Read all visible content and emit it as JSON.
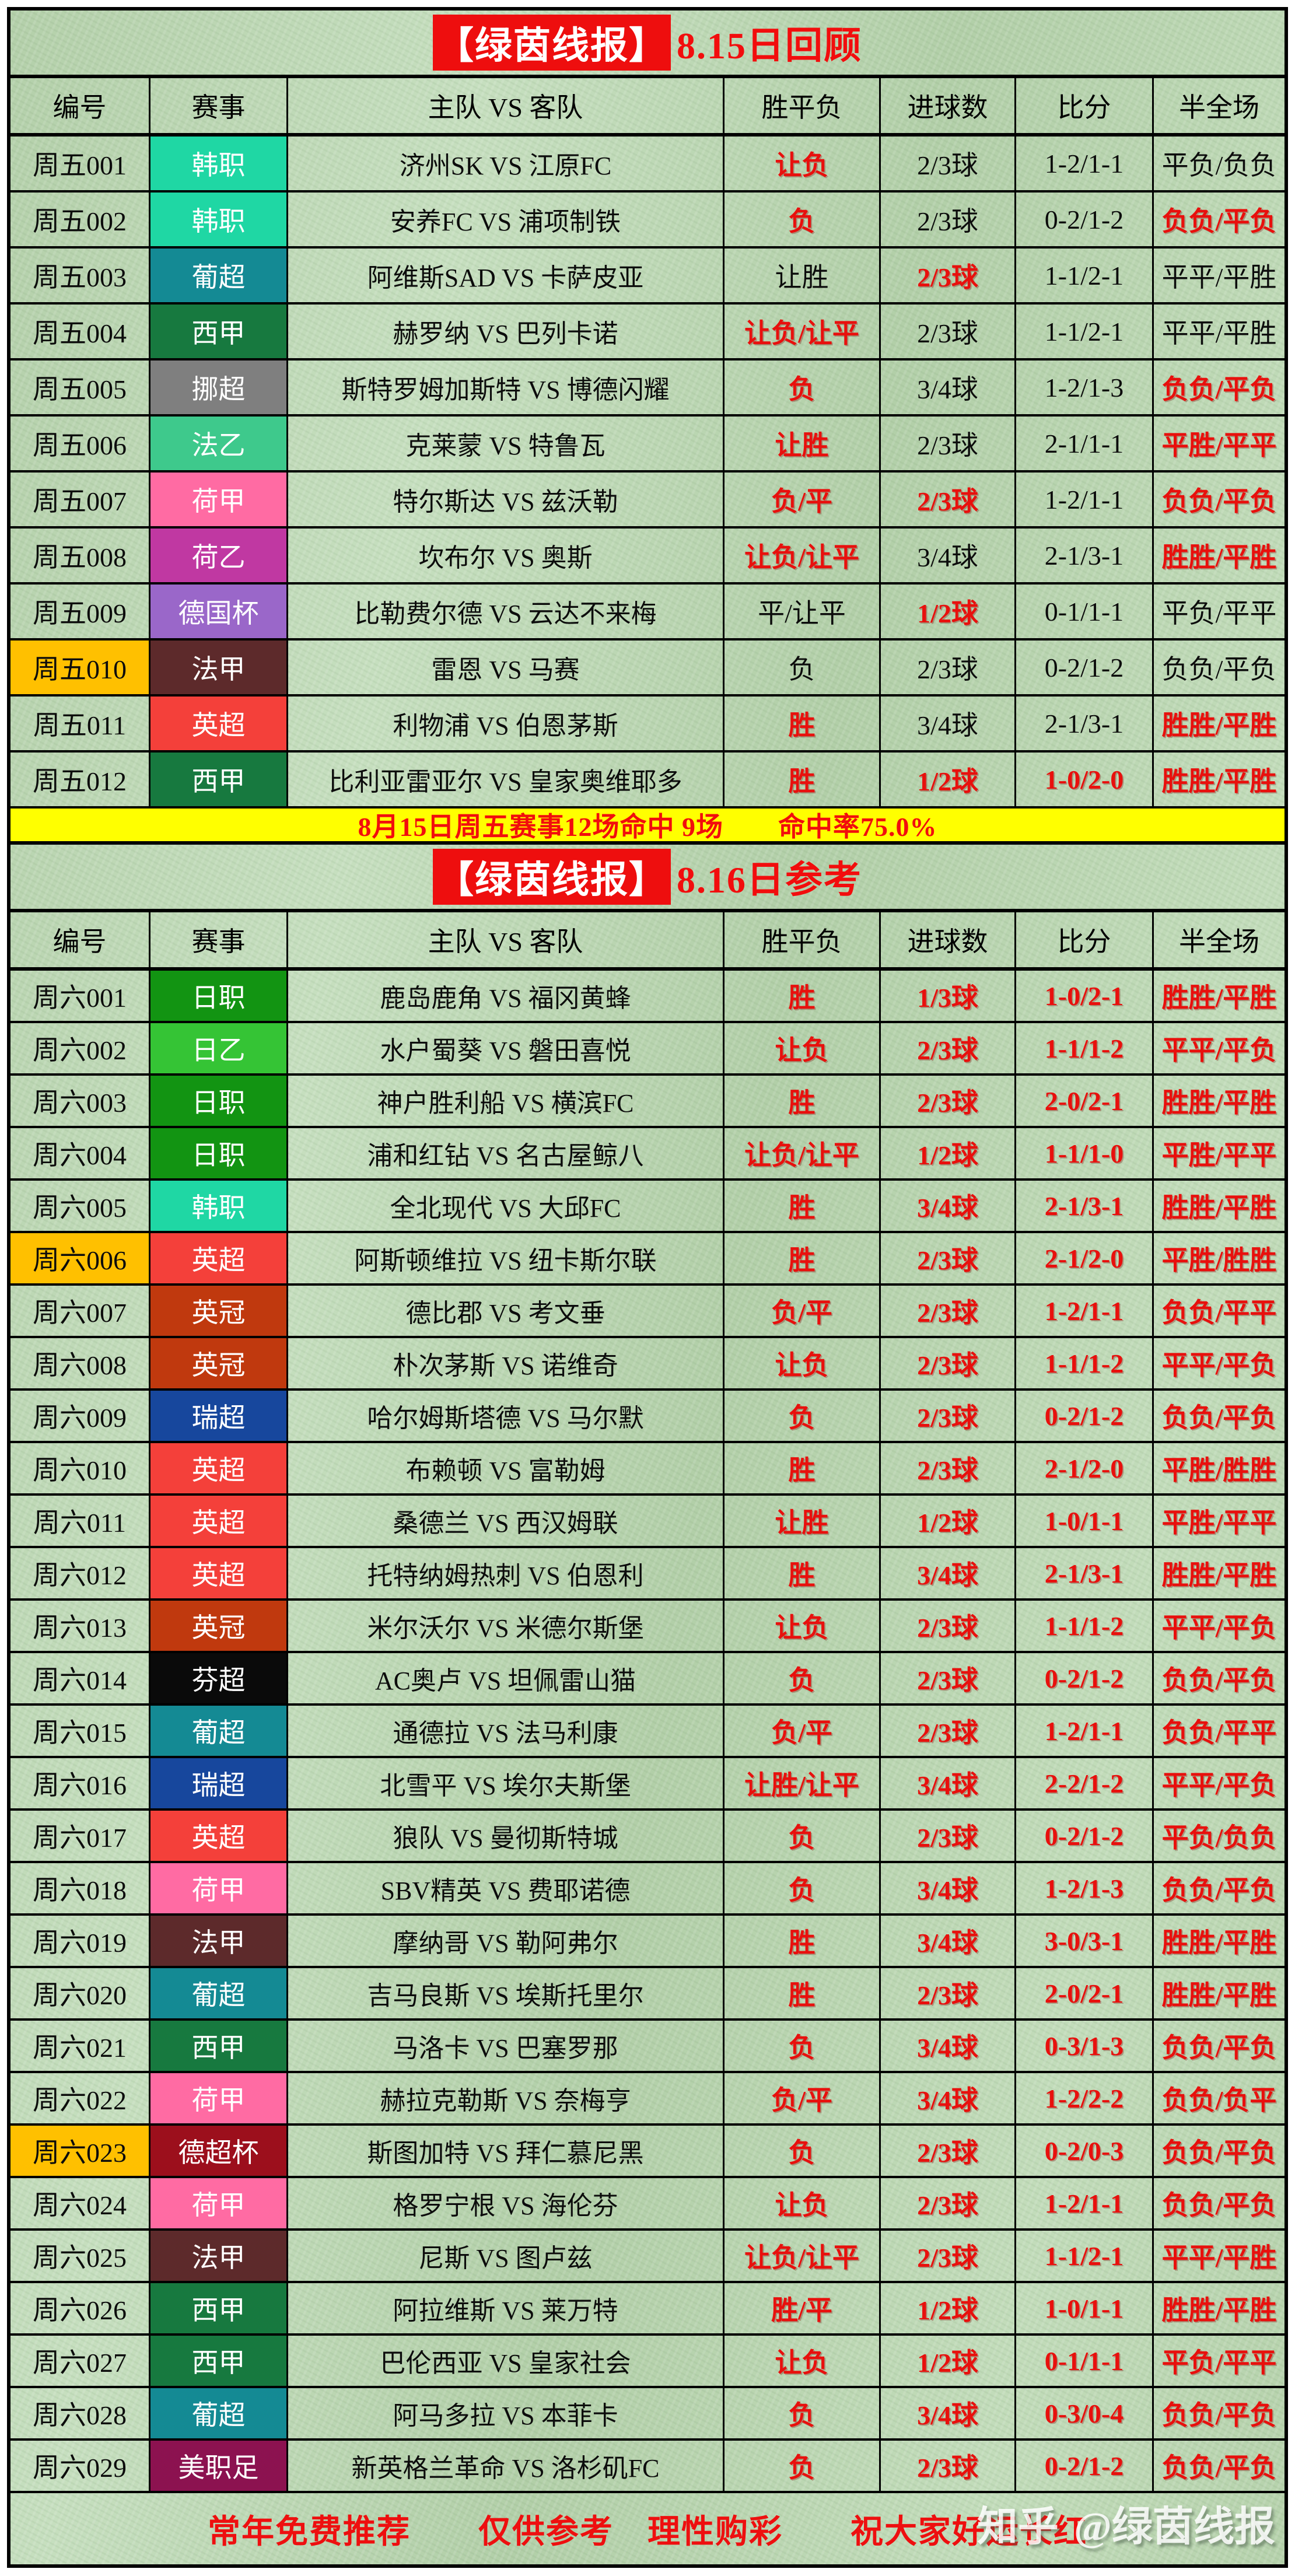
{
  "titles": {
    "brand": "【绿茵线报】",
    "review": "8.15日回顾",
    "reference": "8.16日参考"
  },
  "columns": [
    "编号",
    "赛事",
    "主队 VS 客队",
    "胜平负",
    "进球数",
    "比分",
    "半全场"
  ],
  "colors": {
    "red_text": "#e8100d",
    "black_text": "#0c0c0c",
    "banner_bg": "#ffff00",
    "id_highlight_bg": "#ffc000",
    "brand_badge_bg": "#ee0e0e",
    "board_bg": "#bad5b1",
    "leagues": {
      "韩职": "#1fd7a4",
      "葡超": "#148a94",
      "西甲": "#17793f",
      "挪超": "#7f7f7f",
      "法乙": "#3ec98c",
      "荷甲": "#ff6ba3",
      "荷乙": "#c038a2",
      "德国杯": "#9a67c9",
      "法甲": "#5d2a2b",
      "英超": "#f4403a",
      "日职": "#129412",
      "日乙": "#35c435",
      "英冠": "#c0390e",
      "瑞超": "#17479d",
      "芬超": "#0a0a0a",
      "德超杯": "#9c0f1c",
      "美职足": "#8c1250"
    }
  },
  "sections": [
    {
      "title_suffix": "8.15日回顾",
      "banner": "8月15日周五赛事12场命中 9场　　命中率75.0%",
      "rows": [
        {
          "id": "周五001",
          "hl": false,
          "league": "韩职",
          "match": "济州SK VS 江原FC",
          "vals": [
            "让负",
            "2/3球",
            "1-2/1-1",
            "平负/负负"
          ],
          "red": [
            1,
            0,
            0,
            0
          ]
        },
        {
          "id": "周五002",
          "hl": false,
          "league": "韩职",
          "match": "安养FC VS 浦项制铁",
          "vals": [
            "负",
            "2/3球",
            "0-2/1-2",
            "负负/平负"
          ],
          "red": [
            1,
            0,
            0,
            1
          ]
        },
        {
          "id": "周五003",
          "hl": false,
          "league": "葡超",
          "match": "阿维斯SAD VS 卡萨皮亚",
          "vals": [
            "让胜",
            "2/3球",
            "1-1/2-1",
            "平平/平胜"
          ],
          "red": [
            0,
            1,
            0,
            0
          ]
        },
        {
          "id": "周五004",
          "hl": false,
          "league": "西甲",
          "match": "赫罗纳 VS 巴列卡诺",
          "vals": [
            "让负/让平",
            "2/3球",
            "1-1/2-1",
            "平平/平胜"
          ],
          "red": [
            1,
            0,
            0,
            0
          ]
        },
        {
          "id": "周五005",
          "hl": false,
          "league": "挪超",
          "match": "斯特罗姆加斯特 VS 博德闪耀",
          "vals": [
            "负",
            "3/4球",
            "1-2/1-3",
            "负负/平负"
          ],
          "red": [
            1,
            0,
            0,
            1
          ]
        },
        {
          "id": "周五006",
          "hl": false,
          "league": "法乙",
          "match": "克莱蒙 VS 特鲁瓦",
          "vals": [
            "让胜",
            "2/3球",
            "2-1/1-1",
            "平胜/平平"
          ],
          "red": [
            1,
            0,
            0,
            1
          ]
        },
        {
          "id": "周五007",
          "hl": false,
          "league": "荷甲",
          "match": "特尔斯达 VS 兹沃勒",
          "vals": [
            "负/平",
            "2/3球",
            "1-2/1-1",
            "负负/平负"
          ],
          "red": [
            1,
            1,
            0,
            1
          ]
        },
        {
          "id": "周五008",
          "hl": false,
          "league": "荷乙",
          "match": "坎布尔 VS 奥斯",
          "vals": [
            "让负/让平",
            "3/4球",
            "2-1/3-1",
            "胜胜/平胜"
          ],
          "red": [
            1,
            0,
            0,
            1
          ]
        },
        {
          "id": "周五009",
          "hl": false,
          "league": "德国杯",
          "match": "比勒费尔德 VS 云达不来梅",
          "vals": [
            "平/让平",
            "1/2球",
            "0-1/1-1",
            "平负/平平"
          ],
          "red": [
            0,
            1,
            0,
            0
          ]
        },
        {
          "id": "周五010",
          "hl": true,
          "league": "法甲",
          "match": "雷恩 VS 马赛",
          "vals": [
            "负",
            "2/3球",
            "0-2/1-2",
            "负负/平负"
          ],
          "red": [
            0,
            0,
            0,
            0
          ]
        },
        {
          "id": "周五011",
          "hl": false,
          "league": "英超",
          "match": "利物浦 VS 伯恩茅斯",
          "vals": [
            "胜",
            "3/4球",
            "2-1/3-1",
            "胜胜/平胜"
          ],
          "red": [
            1,
            0,
            0,
            1
          ]
        },
        {
          "id": "周五012",
          "hl": false,
          "league": "西甲",
          "match": "比利亚雷亚尔 VS 皇家奥维耶多",
          "vals": [
            "胜",
            "1/2球",
            "1-0/2-0",
            "胜胜/平胜"
          ],
          "red": [
            1,
            1,
            1,
            1
          ]
        }
      ]
    },
    {
      "title_suffix": "8.16日参考",
      "banner": null,
      "rows": [
        {
          "id": "周六001",
          "hl": false,
          "league": "日职",
          "match": "鹿岛鹿角 VS 福冈黄蜂",
          "vals": [
            "胜",
            "1/3球",
            "1-0/2-1",
            "胜胜/平胜"
          ],
          "red": [
            1,
            1,
            1,
            1
          ]
        },
        {
          "id": "周六002",
          "hl": false,
          "league": "日乙",
          "match": "水户蜀葵 VS 磐田喜悦",
          "vals": [
            "让负",
            "2/3球",
            "1-1/1-2",
            "平平/平负"
          ],
          "red": [
            1,
            1,
            1,
            1
          ]
        },
        {
          "id": "周六003",
          "hl": false,
          "league": "日职",
          "match": "神户胜利船 VS 横滨FC",
          "vals": [
            "胜",
            "2/3球",
            "2-0/2-1",
            "胜胜/平胜"
          ],
          "red": [
            1,
            1,
            1,
            1
          ]
        },
        {
          "id": "周六004",
          "hl": false,
          "league": "日职",
          "match": "浦和红钻 VS 名古屋鲸八",
          "vals": [
            "让负/让平",
            "1/2球",
            "1-1/1-0",
            "平胜/平平"
          ],
          "red": [
            1,
            1,
            1,
            1
          ]
        },
        {
          "id": "周六005",
          "hl": false,
          "league": "韩职",
          "match": "全北现代 VS 大邱FC",
          "vals": [
            "胜",
            "3/4球",
            "2-1/3-1",
            "胜胜/平胜"
          ],
          "red": [
            1,
            1,
            1,
            1
          ]
        },
        {
          "id": "周六006",
          "hl": true,
          "league": "英超",
          "match": "阿斯顿维拉 VS 纽卡斯尔联",
          "vals": [
            "胜",
            "2/3球",
            "2-1/2-0",
            "平胜/胜胜"
          ],
          "red": [
            1,
            1,
            1,
            1
          ]
        },
        {
          "id": "周六007",
          "hl": false,
          "league": "英冠",
          "match": "德比郡 VS 考文垂",
          "vals": [
            "负/平",
            "2/3球",
            "1-2/1-1",
            "负负/平平"
          ],
          "red": [
            1,
            1,
            1,
            1
          ]
        },
        {
          "id": "周六008",
          "hl": false,
          "league": "英冠",
          "match": "朴次茅斯 VS 诺维奇",
          "vals": [
            "让负",
            "2/3球",
            "1-1/1-2",
            "平平/平负"
          ],
          "red": [
            1,
            1,
            1,
            1
          ]
        },
        {
          "id": "周六009",
          "hl": false,
          "league": "瑞超",
          "match": "哈尔姆斯塔德 VS 马尔默",
          "vals": [
            "负",
            "2/3球",
            "0-2/1-2",
            "负负/平负"
          ],
          "red": [
            1,
            1,
            1,
            1
          ]
        },
        {
          "id": "周六010",
          "hl": false,
          "league": "英超",
          "match": "布赖顿 VS 富勒姆",
          "vals": [
            "胜",
            "2/3球",
            "2-1/2-0",
            "平胜/胜胜"
          ],
          "red": [
            1,
            1,
            1,
            1
          ]
        },
        {
          "id": "周六011",
          "hl": false,
          "league": "英超",
          "match": "桑德兰 VS 西汉姆联",
          "vals": [
            "让胜",
            "1/2球",
            "1-0/1-1",
            "平胜/平平"
          ],
          "red": [
            1,
            1,
            1,
            1
          ]
        },
        {
          "id": "周六012",
          "hl": false,
          "league": "英超",
          "match": "托特纳姆热刺 VS 伯恩利",
          "vals": [
            "胜",
            "3/4球",
            "2-1/3-1",
            "胜胜/平胜"
          ],
          "red": [
            1,
            1,
            1,
            1
          ]
        },
        {
          "id": "周六013",
          "hl": false,
          "league": "英冠",
          "match": "米尔沃尔 VS 米德尔斯堡",
          "vals": [
            "让负",
            "2/3球",
            "1-1/1-2",
            "平平/平负"
          ],
          "red": [
            1,
            1,
            1,
            1
          ]
        },
        {
          "id": "周六014",
          "hl": false,
          "league": "芬超",
          "match": "AC奥卢 VS 坦佩雷山猫",
          "vals": [
            "负",
            "2/3球",
            "0-2/1-2",
            "负负/平负"
          ],
          "red": [
            1,
            1,
            1,
            1
          ]
        },
        {
          "id": "周六015",
          "hl": false,
          "league": "葡超",
          "match": "通德拉 VS 法马利康",
          "vals": [
            "负/平",
            "2/3球",
            "1-2/1-1",
            "负负/平平"
          ],
          "red": [
            1,
            1,
            1,
            1
          ]
        },
        {
          "id": "周六016",
          "hl": false,
          "league": "瑞超",
          "match": "北雪平 VS 埃尔夫斯堡",
          "vals": [
            "让胜/让平",
            "3/4球",
            "2-2/1-2",
            "平平/平负"
          ],
          "red": [
            1,
            1,
            1,
            1
          ]
        },
        {
          "id": "周六017",
          "hl": false,
          "league": "英超",
          "match": "狼队 VS 曼彻斯特城",
          "vals": [
            "负",
            "2/3球",
            "0-2/1-2",
            "平负/负负"
          ],
          "red": [
            1,
            1,
            1,
            1
          ]
        },
        {
          "id": "周六018",
          "hl": false,
          "league": "荷甲",
          "match": "SBV精英 VS 费耶诺德",
          "vals": [
            "负",
            "3/4球",
            "1-2/1-3",
            "负负/平负"
          ],
          "red": [
            1,
            1,
            1,
            1
          ]
        },
        {
          "id": "周六019",
          "hl": false,
          "league": "法甲",
          "match": "摩纳哥 VS 勒阿弗尔",
          "vals": [
            "胜",
            "3/4球",
            "3-0/3-1",
            "胜胜/平胜"
          ],
          "red": [
            1,
            1,
            1,
            1
          ]
        },
        {
          "id": "周六020",
          "hl": false,
          "league": "葡超",
          "match": "吉马良斯 VS 埃斯托里尔",
          "vals": [
            "胜",
            "2/3球",
            "2-0/2-1",
            "胜胜/平胜"
          ],
          "red": [
            1,
            1,
            1,
            1
          ]
        },
        {
          "id": "周六021",
          "hl": false,
          "league": "西甲",
          "match": "马洛卡 VS 巴塞罗那",
          "vals": [
            "负",
            "3/4球",
            "0-3/1-3",
            "负负/平负"
          ],
          "red": [
            1,
            1,
            1,
            1
          ]
        },
        {
          "id": "周六022",
          "hl": false,
          "league": "荷甲",
          "match": "赫拉克勒斯 VS 奈梅亨",
          "vals": [
            "负/平",
            "3/4球",
            "1-2/2-2",
            "负负/负平"
          ],
          "red": [
            1,
            1,
            1,
            1
          ]
        },
        {
          "id": "周六023",
          "hl": true,
          "league": "德超杯",
          "match": "斯图加特 VS 拜仁慕尼黑",
          "vals": [
            "负",
            "2/3球",
            "0-2/0-3",
            "负负/平负"
          ],
          "red": [
            1,
            1,
            1,
            1
          ]
        },
        {
          "id": "周六024",
          "hl": false,
          "league": "荷甲",
          "match": "格罗宁根 VS 海伦芬",
          "vals": [
            "让负",
            "2/3球",
            "1-2/1-1",
            "负负/平负"
          ],
          "red": [
            1,
            1,
            1,
            1
          ]
        },
        {
          "id": "周六025",
          "hl": false,
          "league": "法甲",
          "match": "尼斯 VS 图卢兹",
          "vals": [
            "让负/让平",
            "2/3球",
            "1-1/2-1",
            "平平/平胜"
          ],
          "red": [
            1,
            1,
            1,
            1
          ]
        },
        {
          "id": "周六026",
          "hl": false,
          "league": "西甲",
          "match": "阿拉维斯 VS 莱万特",
          "vals": [
            "胜/平",
            "1/2球",
            "1-0/1-1",
            "胜胜/平胜"
          ],
          "red": [
            1,
            1,
            1,
            1
          ]
        },
        {
          "id": "周六027",
          "hl": false,
          "league": "西甲",
          "match": "巴伦西亚 VS 皇家社会",
          "vals": [
            "让负",
            "1/2球",
            "0-1/1-1",
            "平负/平平"
          ],
          "red": [
            1,
            1,
            1,
            1
          ]
        },
        {
          "id": "周六028",
          "hl": false,
          "league": "葡超",
          "match": "阿马多拉 VS 本菲卡",
          "vals": [
            "负",
            "3/4球",
            "0-3/0-4",
            "负负/平负"
          ],
          "red": [
            1,
            1,
            1,
            1
          ]
        },
        {
          "id": "周六029",
          "hl": false,
          "league": "美职足",
          "match": "新英格兰革命 VS 洛杉矶FC",
          "vals": [
            "负",
            "2/3球",
            "0-2/1-2",
            "负负/平负"
          ],
          "red": [
            1,
            1,
            1,
            1
          ]
        }
      ]
    }
  ],
  "footer": "常年免费推荐　　仅供参考　理性购彩　　祝大家好运长红",
  "watermark": {
    "site": "知乎",
    "handle": "@绿茵线报"
  }
}
